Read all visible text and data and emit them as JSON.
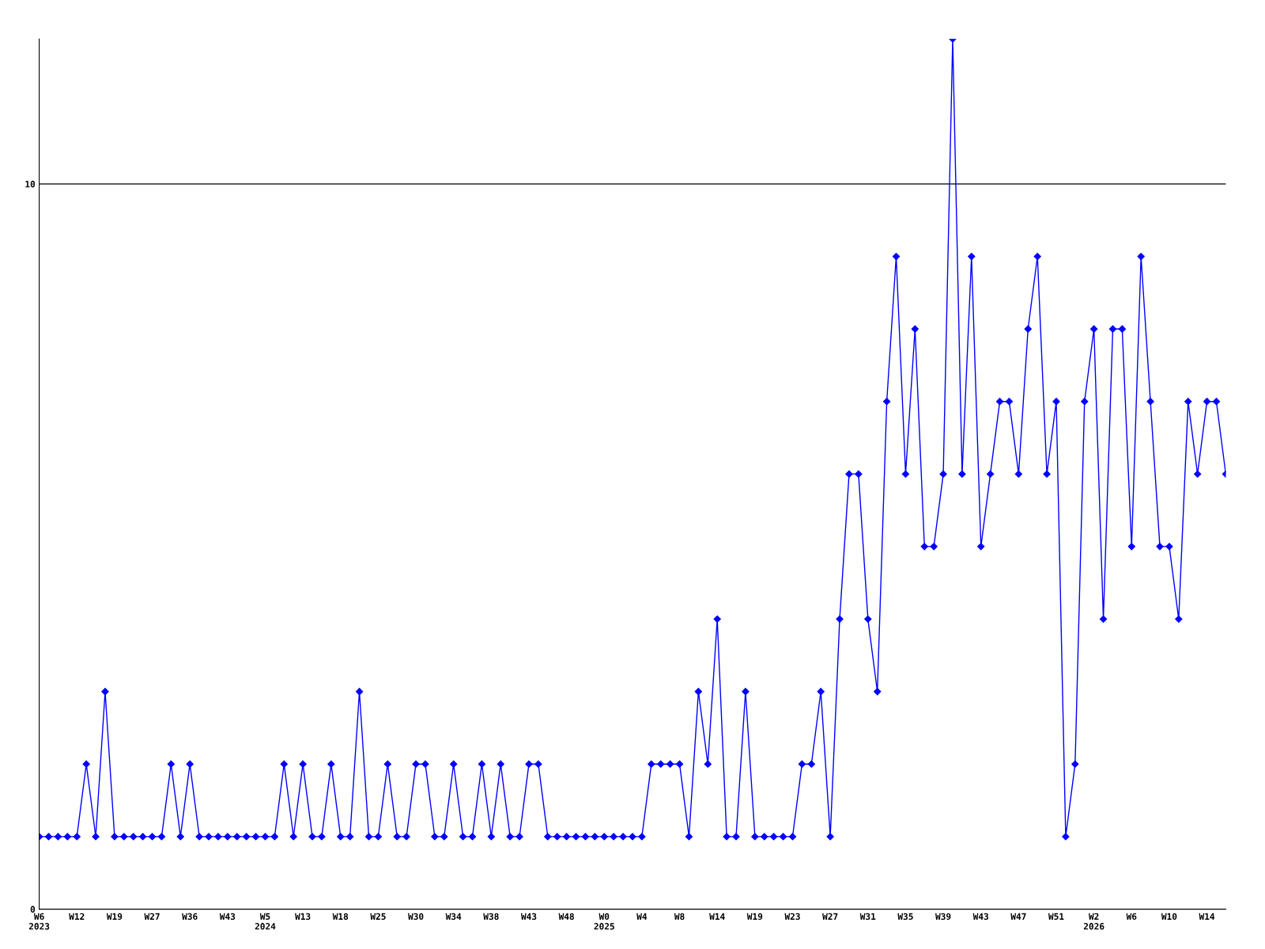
{
  "chart_data": {
    "type": "line",
    "categories": [
      "W6\n2023",
      null,
      null,
      null,
      "W12",
      null,
      null,
      null,
      "W19",
      null,
      null,
      null,
      "W27",
      null,
      null,
      null,
      "W36",
      null,
      null,
      null,
      "W43",
      null,
      null,
      null,
      "W5\n2024",
      null,
      null,
      null,
      "W13",
      null,
      null,
      null,
      "W18",
      null,
      null,
      null,
      "W25",
      null,
      null,
      null,
      "W30",
      null,
      null,
      null,
      "W34",
      null,
      null,
      null,
      "W38",
      null,
      null,
      null,
      "W43",
      null,
      null,
      null,
      "W48",
      null,
      null,
      null,
      "W0\n2025",
      null,
      null,
      null,
      "W4",
      null,
      null,
      null,
      "W8",
      null,
      null,
      null,
      "W14",
      null,
      null,
      null,
      "W19",
      null,
      null,
      null,
      "W23",
      null,
      null,
      null,
      "W27",
      null,
      null,
      null,
      "W31",
      null,
      null,
      null,
      "W35",
      null,
      null,
      null,
      "W39",
      null,
      null,
      null,
      "W43",
      null,
      null,
      null,
      "W47",
      null,
      null,
      null,
      "W51",
      null,
      null,
      null,
      "W2\n2026",
      null,
      null,
      null,
      "W6",
      null,
      null,
      null,
      "W10",
      null,
      null,
      null,
      "W14",
      null,
      null
    ],
    "series": [
      {
        "color": "#0000ff",
        "values": [
          1,
          1,
          1,
          1,
          1,
          2,
          1,
          3,
          1,
          1,
          1,
          1,
          1,
          1,
          2,
          1,
          2,
          1,
          1,
          1,
          1,
          1,
          1,
          1,
          1,
          1,
          2,
          1,
          2,
          1,
          1,
          2,
          1,
          1,
          3,
          1,
          1,
          2,
          1,
          1,
          2,
          2,
          1,
          1,
          2,
          1,
          1,
          2,
          1,
          2,
          1,
          1,
          2,
          2,
          1,
          1,
          1,
          1,
          1,
          1,
          1,
          1,
          1,
          1,
          1,
          2,
          2,
          2,
          2,
          1,
          3,
          2,
          4,
          1,
          1,
          3,
          1,
          1,
          1,
          1,
          1,
          2,
          2,
          3,
          1,
          4,
          6,
          6,
          4,
          3,
          7,
          9,
          6,
          8,
          5,
          5,
          6,
          12,
          6,
          9,
          5,
          6,
          7,
          7,
          6,
          8,
          9,
          6,
          7,
          1,
          2,
          7,
          8,
          4,
          8,
          8,
          5,
          9,
          7,
          5,
          5,
          4,
          7,
          6,
          7,
          7,
          6
        ]
      }
    ],
    "ylim": [
      0,
      12
    ],
    "yticks": [
      0,
      10
    ],
    "grid": "y",
    "marker": "diamond",
    "line_style": "solid"
  }
}
